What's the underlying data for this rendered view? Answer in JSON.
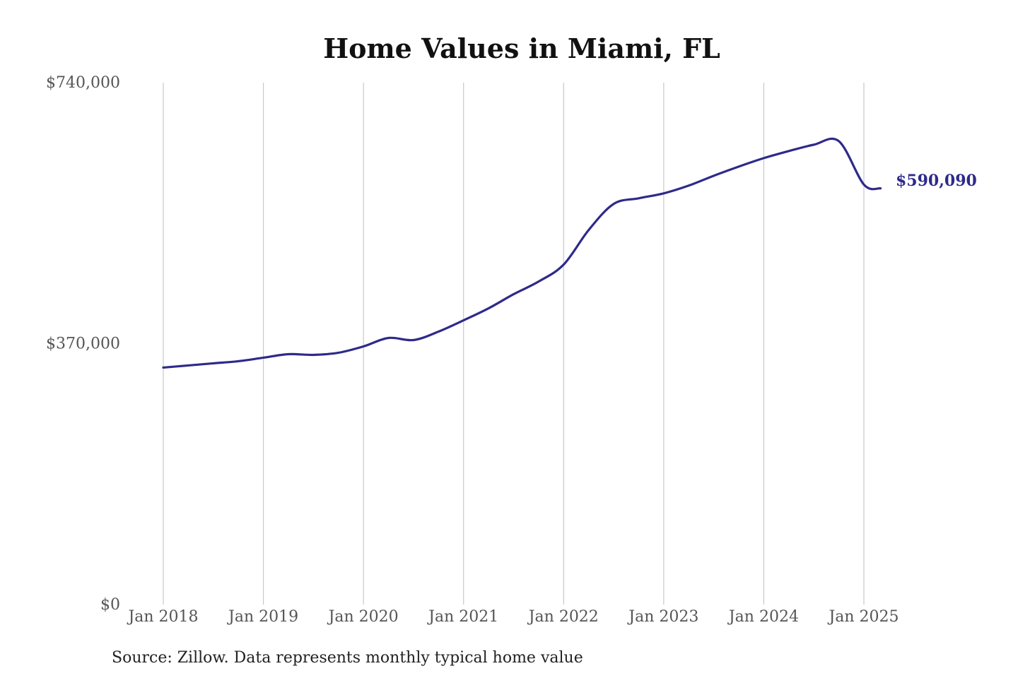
{
  "chart_data": {
    "type": "line",
    "title": "Home Values in Miami, FL",
    "xlabel": "",
    "ylabel": "",
    "source": "Source: Zillow. Data represents monthly typical home value",
    "ylim": [
      0,
      740000
    ],
    "y_ticks": [
      {
        "value": 0,
        "label": "$0"
      },
      {
        "value": 370000,
        "label": "$370,000"
      },
      {
        "value": 740000,
        "label": "$740,000"
      }
    ],
    "x_ticks": [
      {
        "value": "2018-01",
        "label": "Jan 2018"
      },
      {
        "value": "2019-01",
        "label": "Jan 2019"
      },
      {
        "value": "2020-01",
        "label": "Jan 2020"
      },
      {
        "value": "2021-01",
        "label": "Jan 2021"
      },
      {
        "value": "2022-01",
        "label": "Jan 2022"
      },
      {
        "value": "2023-01",
        "label": "Jan 2023"
      },
      {
        "value": "2024-01",
        "label": "Jan 2024"
      },
      {
        "value": "2025-01",
        "label": "Jan 2025"
      }
    ],
    "grid": "vertical",
    "end_label": "$590,090",
    "line_color": "#2e2a8a",
    "series": [
      {
        "name": "",
        "x": [
          "2018-01",
          "2018-04",
          "2018-07",
          "2018-10",
          "2019-01",
          "2019-04",
          "2019-07",
          "2019-10",
          "2020-01",
          "2020-04",
          "2020-07",
          "2020-10",
          "2021-01",
          "2021-04",
          "2021-07",
          "2021-10",
          "2022-01",
          "2022-04",
          "2022-07",
          "2022-10",
          "2023-01",
          "2023-04",
          "2023-07",
          "2023-10",
          "2024-01",
          "2024-04",
          "2024-07",
          "2024-10",
          "2025-01",
          "2025-03"
        ],
        "values": [
          336000,
          339000,
          342000,
          345000,
          350000,
          355000,
          354000,
          357000,
          366000,
          378000,
          375000,
          387000,
          403000,
          420000,
          440000,
          458000,
          482000,
          531000,
          568000,
          576000,
          583000,
          594000,
          608000,
          621000,
          633000,
          643000,
          652000,
          657000,
          595500,
          590090
        ]
      }
    ]
  }
}
